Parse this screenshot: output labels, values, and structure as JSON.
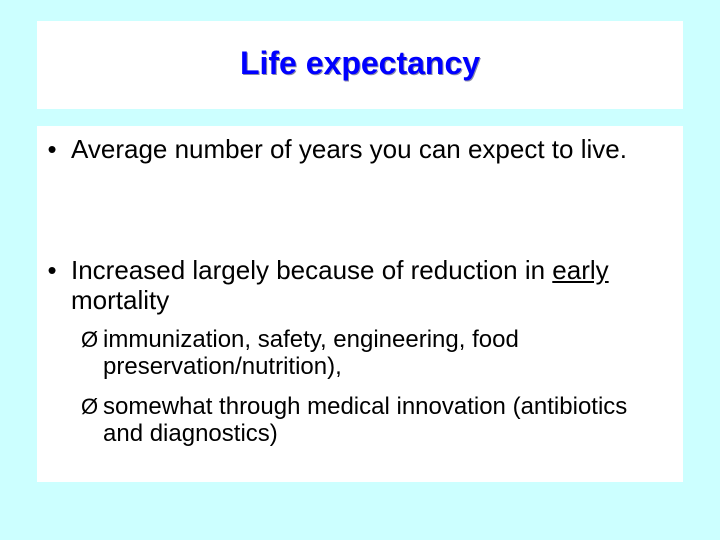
{
  "slide": {
    "title": "Life expectancy",
    "bullets": [
      {
        "marker": "•",
        "text": "Average number of years you can expect to live."
      },
      {
        "marker": "•",
        "text_before": "Increased largely because of reduction in ",
        "text_underlined": "early",
        "text_after": " mortality"
      }
    ],
    "sub_bullets": [
      {
        "marker": "Ø",
        "text": "immunization, safety, engineering, food preservation/nutrition),"
      },
      {
        "marker": "Ø",
        "text": "somewhat through medical innovation (antibiotics and diagnostics)"
      }
    ]
  },
  "colors": {
    "background": "#CCFFFF",
    "panel": "#FFFFFF",
    "title": "#0000FF",
    "text": "#000000"
  }
}
